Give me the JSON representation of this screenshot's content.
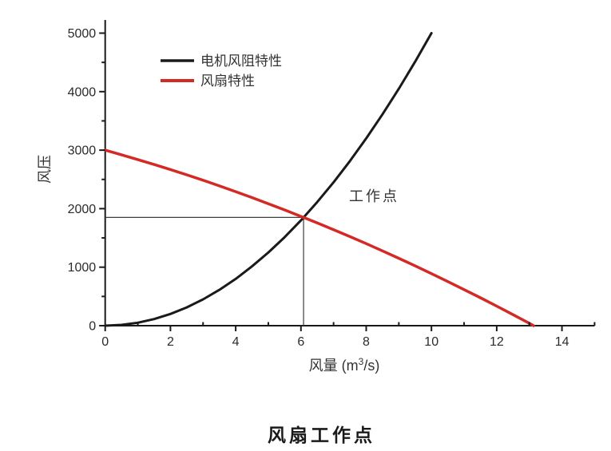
{
  "page": {
    "caption": "风扇工作点"
  },
  "chart_data": {
    "type": "line",
    "title": "",
    "caption": "风扇工作点",
    "xlabel_pre": "风量 (m",
    "xlabel_sup": "3",
    "xlabel_post": "/s)",
    "ylabel": "风压",
    "xlim": [
      0,
      15
    ],
    "ylim": [
      0,
      5270
    ],
    "grid": false,
    "legend_position": "upper-left-inside",
    "x_major_ticks": [
      0,
      2,
      4,
      6,
      8,
      10,
      12,
      14
    ],
    "x_minor_ticks": [
      1,
      3,
      5,
      7,
      9,
      11,
      13,
      15
    ],
    "y_major_ticks": [
      0,
      1000,
      2000,
      3000,
      4000,
      5000
    ],
    "y_minor_ticks": [
      500,
      1500,
      2500,
      3500,
      4500
    ],
    "axis_color": "#1a1a1a",
    "text_color": "#333333",
    "reference_line_color": "#3f3f3f",
    "series": [
      {
        "name": "电机风阻特性",
        "color": "#1a1a1a",
        "width": 3,
        "points": [
          [
            0,
            0
          ],
          [
            0.5,
            13
          ],
          [
            1,
            50
          ],
          [
            1.5,
            113
          ],
          [
            2,
            200
          ],
          [
            2.5,
            313
          ],
          [
            3,
            450
          ],
          [
            3.5,
            613
          ],
          [
            4,
            800
          ],
          [
            4.5,
            1013
          ],
          [
            5,
            1250
          ],
          [
            5.5,
            1513
          ],
          [
            6,
            1800
          ],
          [
            6.5,
            2113
          ],
          [
            7,
            2450
          ],
          [
            7.5,
            2813
          ],
          [
            8,
            3200
          ],
          [
            8.5,
            3613
          ],
          [
            9,
            4050
          ],
          [
            9.5,
            4513
          ],
          [
            10,
            5000
          ]
        ]
      },
      {
        "name": "风扇特性",
        "color": "#d42a26",
        "width": 3.5,
        "points": [
          [
            0,
            3000
          ],
          [
            0.5,
            2921
          ],
          [
            1,
            2839
          ],
          [
            1.5,
            2755
          ],
          [
            2,
            2668
          ],
          [
            2.5,
            2578
          ],
          [
            3,
            2485
          ],
          [
            3.5,
            2389
          ],
          [
            4,
            2290
          ],
          [
            4.5,
            2189
          ],
          [
            5,
            2085
          ],
          [
            5.5,
            1978
          ],
          [
            6,
            1868
          ],
          [
            6.5,
            1756
          ],
          [
            7,
            1641
          ],
          [
            7.5,
            1523
          ],
          [
            8,
            1402
          ],
          [
            8.5,
            1278
          ],
          [
            9,
            1151
          ],
          [
            9.5,
            1022
          ],
          [
            10,
            890
          ],
          [
            10.5,
            755
          ],
          [
            11,
            617
          ],
          [
            11.5,
            477
          ],
          [
            12,
            334
          ],
          [
            12.5,
            188
          ],
          [
            13,
            39
          ],
          [
            13.13,
            0
          ]
        ]
      }
    ],
    "operating_point": {
      "x": 6.08,
      "y": 1850,
      "label": "工作点"
    }
  }
}
